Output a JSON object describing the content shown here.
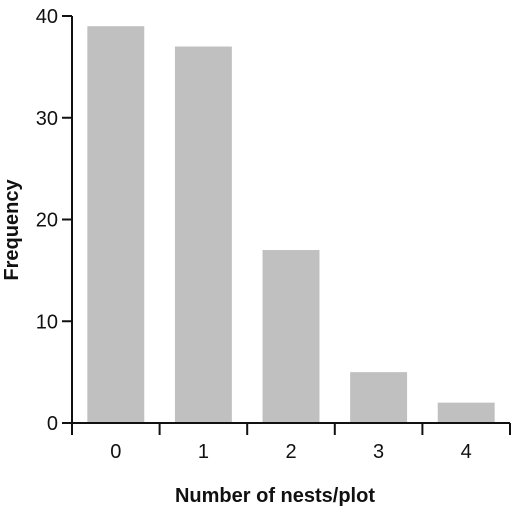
{
  "chart_data": {
    "type": "bar",
    "categories": [
      "0",
      "1",
      "2",
      "3",
      "4"
    ],
    "values": [
      39,
      37,
      17,
      5,
      2
    ],
    "xlabel": "Number of nests/plot",
    "ylabel": "Frequency",
    "ylim": [
      0,
      40
    ],
    "yticks": [
      0,
      10,
      20,
      30,
      40
    ],
    "grid": false,
    "bar_color": "#c0c0c0",
    "axis_color": "#111111"
  }
}
